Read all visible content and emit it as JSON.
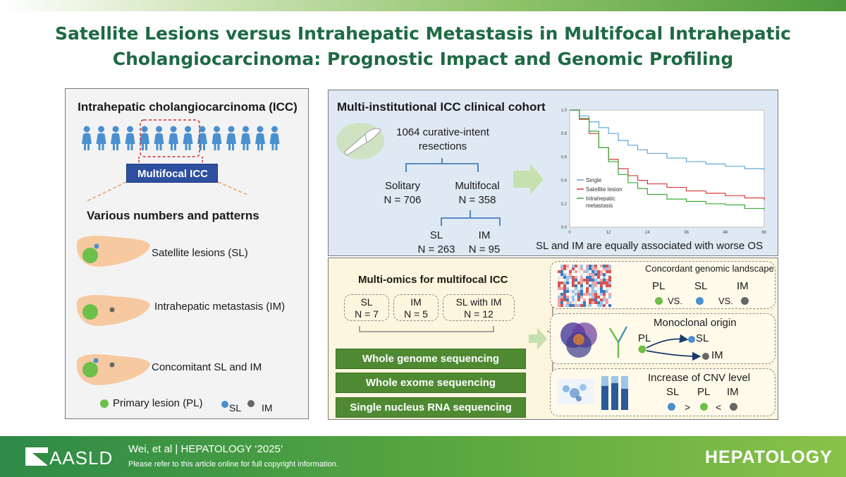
{
  "title_line1": "Satellite Lesions versus Intrahepatic Metastasis in Multifocal Intrahepatic",
  "title_line2": "Cholangiocarcinoma: Prognostic Impact and Genomic Profiling",
  "left": {
    "heading": "Intrahepatic cholangiocarcinoma (ICC)",
    "multifocal_label": "Multifocal ICC",
    "patterns_heading": "Various numbers and patterns",
    "sl": "Satellite lesions (SL)",
    "im": "Intrahepatic metastasis (IM)",
    "concomitant": "Concomitant SL and IM",
    "legend_pl": "Primary lesion (PL)",
    "legend_sl": "SL",
    "legend_im": "IM"
  },
  "cohort": {
    "heading": "Multi-institutional ICC clinical cohort",
    "total_line1": "1064 curative-intent",
    "total_line2": "resections",
    "solitary": "Solitary",
    "solitary_n": "N = 706",
    "multifocal": "Multifocal",
    "multifocal_n": "N = 358",
    "sl": "SL",
    "sl_n": "N = 263",
    "im": "IM",
    "im_n": "N = 95",
    "conclusion": "SL and IM are equally associated with worse OS"
  },
  "chart_data": {
    "type": "line",
    "title": "",
    "xlabel": "",
    "ylabel": "",
    "xlim": [
      0,
      60
    ],
    "ylim": [
      0,
      1.0
    ],
    "x_ticks": [
      "0",
      "12",
      "24",
      "36",
      "48",
      "60"
    ],
    "y_ticks": [
      "0.0",
      "0.2",
      "0.4",
      "0.6",
      "0.8",
      "1.0"
    ],
    "legend_position": "left-middle",
    "series": [
      {
        "name": "Single",
        "color": "#5fa8d8",
        "x": [
          0,
          3,
          6,
          9,
          12,
          15,
          18,
          21,
          24,
          30,
          36,
          42,
          48,
          54,
          60
        ],
        "y": [
          1.0,
          0.95,
          0.9,
          0.85,
          0.8,
          0.74,
          0.7,
          0.66,
          0.63,
          0.59,
          0.56,
          0.54,
          0.52,
          0.5,
          0.49
        ]
      },
      {
        "name": "Satellite lesion",
        "color": "#d83a3a",
        "x": [
          0,
          3,
          6,
          9,
          12,
          15,
          18,
          21,
          24,
          30,
          36,
          42,
          48,
          54,
          60
        ],
        "y": [
          1.0,
          0.92,
          0.8,
          0.68,
          0.58,
          0.5,
          0.44,
          0.4,
          0.37,
          0.34,
          0.31,
          0.29,
          0.27,
          0.25,
          0.23
        ]
      },
      {
        "name": "Intrahepatic metastasis",
        "color": "#3aaa3a",
        "x": [
          0,
          3,
          6,
          9,
          12,
          15,
          18,
          21,
          24,
          30,
          36,
          42,
          48,
          54,
          60
        ],
        "y": [
          1.0,
          0.93,
          0.82,
          0.68,
          0.56,
          0.45,
          0.38,
          0.33,
          0.28,
          0.24,
          0.22,
          0.2,
          0.19,
          0.16,
          0.15
        ]
      }
    ]
  },
  "omics": {
    "heading": "Multi-omics for multifocal ICC",
    "sl": "SL",
    "sl_n": "N = 7",
    "im": "IM",
    "im_n": "N = 5",
    "slim": "SL with IM",
    "slim_n": "N = 12",
    "wgs": "Whole genome sequencing",
    "wes": "Whole exome sequencing",
    "snrna": "Single nucleus RNA sequencing",
    "r1_title": "Concordant genomic landscape",
    "r1_pl": "PL",
    "r1_sl": "SL",
    "r1_im": "IM",
    "r1_vs1": "VS.",
    "r1_vs2": "VS.",
    "r2_title": "Monoclonal origin",
    "r2_pl": "PL",
    "r2_sl": "SL",
    "r2_im": "IM",
    "r3_title": "Increase of CNV level",
    "r3_sl": "SL",
    "r3_pl": "PL",
    "r3_im": "IM",
    "r3_gt": ">",
    "r3_lt": "<"
  },
  "footer": {
    "logo": "AASLD",
    "citation": "Wei, et al  |  HEPATOLOGY ‘2025’",
    "copyright": "Please refer to this article online for full copyright information.",
    "journal": "HEPATOLOGY"
  },
  "colors": {
    "title": "#1e6a44",
    "pl_green": "#6cc04a",
    "sl_blue": "#4a8fd0",
    "im_gray": "#666666",
    "liver": "#f6c9a0"
  }
}
